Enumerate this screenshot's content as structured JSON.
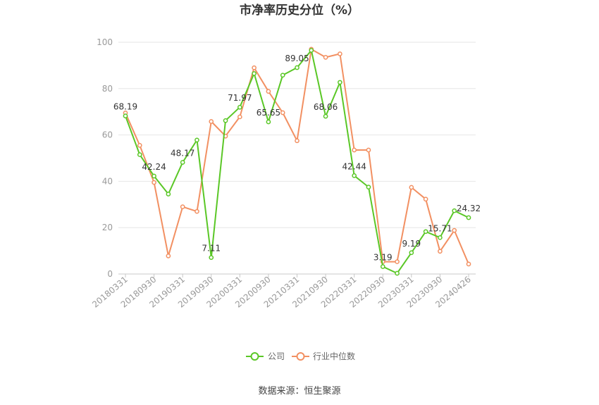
{
  "chart_data": {
    "type": "line",
    "title": "市净率历史分位（%）",
    "source": "数据来源：恒生聚源",
    "ylim": [
      0,
      100
    ],
    "yticks": [
      0,
      20,
      40,
      60,
      80,
      100
    ],
    "grid": true,
    "legend_position": "bottom",
    "x_tick_labels": [
      "20180331",
      "20180930",
      "20190331",
      "20190930",
      "20200331",
      "20200930",
      "20210331",
      "20210930",
      "20220331",
      "20220930",
      "20230331",
      "20230930",
      "20240426"
    ],
    "series": [
      {
        "name": "公司",
        "color": "#5ac726",
        "values": [
          68.19,
          51.5,
          42.24,
          34.5,
          48.17,
          57.8,
          7.11,
          66.2,
          71.97,
          86.5,
          65.65,
          85.8,
          89.05,
          96.5,
          68.06,
          82.7,
          42.44,
          37.5,
          3.19,
          0.3,
          9.19,
          18.3,
          15.71,
          27.3,
          24.32
        ],
        "labels": {
          "0": "68.19",
          "2": "42.24",
          "4": "48.17",
          "6": "7.11",
          "8": "71.97",
          "10": "65.65",
          "12": "89.05",
          "14": "68.06",
          "16": "42.44",
          "18": "3.19",
          "20": "9.19",
          "22": "15.71",
          "24": "24.32"
        }
      },
      {
        "name": "行业中位数",
        "color": "#f29062",
        "values": [
          69.5,
          55.5,
          39.5,
          7.8,
          29.0,
          27.0,
          65.8,
          59.5,
          67.8,
          89.0,
          78.8,
          69.6,
          57.5,
          97.0,
          93.5,
          95.0,
          53.5,
          53.5,
          5.3,
          5.3,
          37.4,
          32.3,
          9.8,
          18.8,
          4.3
        ]
      }
    ]
  }
}
